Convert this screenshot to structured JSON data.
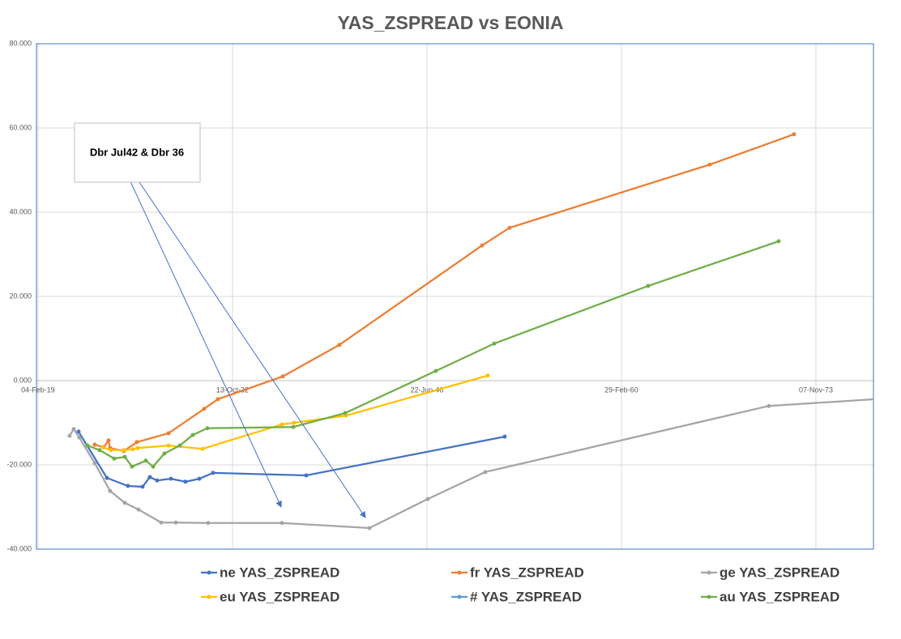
{
  "chart_data": {
    "type": "line",
    "title": "YAS_ZSPREAD vs EONIA",
    "annotation": "Dbr Jul42 & Dbr 36",
    "grid": true,
    "legend": "bottom",
    "xlim": [
      43460,
      64980
    ],
    "xticks": [
      {
        "value": 43500,
        "label": "04-Feb-19"
      },
      {
        "value": 48500,
        "label": "13-Oct-32"
      },
      {
        "value": 53500,
        "label": "22-Jun-46"
      },
      {
        "value": 58500,
        "label": "29-Feb-60"
      },
      {
        "value": 63500,
        "label": "07-Nov-73"
      }
    ],
    "ylim": [
      -40,
      80
    ],
    "yticks": [
      {
        "value": -40,
        "label": "-40.000"
      },
      {
        "value": -20,
        "label": "-20.000"
      },
      {
        "value": 0,
        "label": "0.000"
      },
      {
        "value": 20,
        "label": "20.000"
      },
      {
        "value": 40,
        "label": "40.000"
      },
      {
        "value": 60,
        "label": "60.000"
      },
      {
        "value": 80,
        "label": "80.000"
      }
    ],
    "series": [
      {
        "name": "ne YAS_ZSPREAD",
        "color": "#4472c4",
        "x": [
          44542,
          45271,
          45812,
          46187,
          46375,
          46562,
          46917,
          47292,
          47646,
          48000,
          50396,
          55500
        ],
        "values": [
          -12.1,
          -23.1,
          -25.0,
          -25.2,
          -22.9,
          -23.7,
          -23.3,
          -24.0,
          -23.3,
          -21.9,
          -22.5,
          -13.3
        ]
      },
      {
        "name": "fr YAS_ZSPREAD",
        "color": "#ed7d31",
        "x": [
          44958,
          45187,
          45312,
          45354,
          45708,
          46042,
          46854,
          47771,
          48125,
          49792,
          51250,
          54917,
          55625,
          60771,
          62937
        ],
        "values": [
          -15.2,
          -15.8,
          -14.2,
          -16.0,
          -16.7,
          -14.6,
          -12.5,
          -6.7,
          -4.4,
          1.0,
          8.5,
          32.1,
          36.3,
          51.3,
          58.5
        ]
      },
      {
        "name": "ge YAS_ZSPREAD",
        "color": "#a5a5a5",
        "x": [
          44312,
          44417,
          44562,
          44958,
          45354,
          45729,
          46083,
          46667,
          47042,
          47875,
          49771,
          52021,
          53521,
          55000,
          62292,
          65021
        ],
        "values": [
          -13.1,
          -11.5,
          -13.5,
          -19.6,
          -26.2,
          -29.0,
          -30.6,
          -33.7,
          -33.7,
          -33.8,
          -33.8,
          -35.0,
          -28.1,
          -21.7,
          -6.0,
          -4.4
        ]
      },
      {
        "name": "eu YAS_ZSPREAD",
        "color": "#ffc000",
        "x": [
          45167,
          45375,
          45708,
          45937,
          46062,
          46854,
          47729,
          49771,
          50083,
          51417,
          55062
        ],
        "values": [
          -15.8,
          -16.5,
          -16.5,
          -16.3,
          -16.0,
          -15.4,
          -16.2,
          -10.4,
          -10.0,
          -8.3,
          1.2
        ]
      },
      {
        "name": "# YAS_ZSPREAD",
        "color": "#5b9bd5",
        "x": [],
        "values": []
      },
      {
        "name": "au YAS_ZSPREAD",
        "color": "#70ad47",
        "x": [
          44771,
          45083,
          45458,
          45729,
          45917,
          46271,
          46458,
          46750,
          47146,
          47479,
          47854,
          50062,
          51396,
          53729,
          55229,
          59187,
          62542
        ],
        "values": [
          -15.4,
          -16.5,
          -18.5,
          -18.1,
          -20.4,
          -19.0,
          -20.4,
          -17.3,
          -15.4,
          -12.9,
          -11.3,
          -11.0,
          -7.7,
          2.3,
          8.8,
          22.5,
          33.1
        ]
      }
    ]
  }
}
